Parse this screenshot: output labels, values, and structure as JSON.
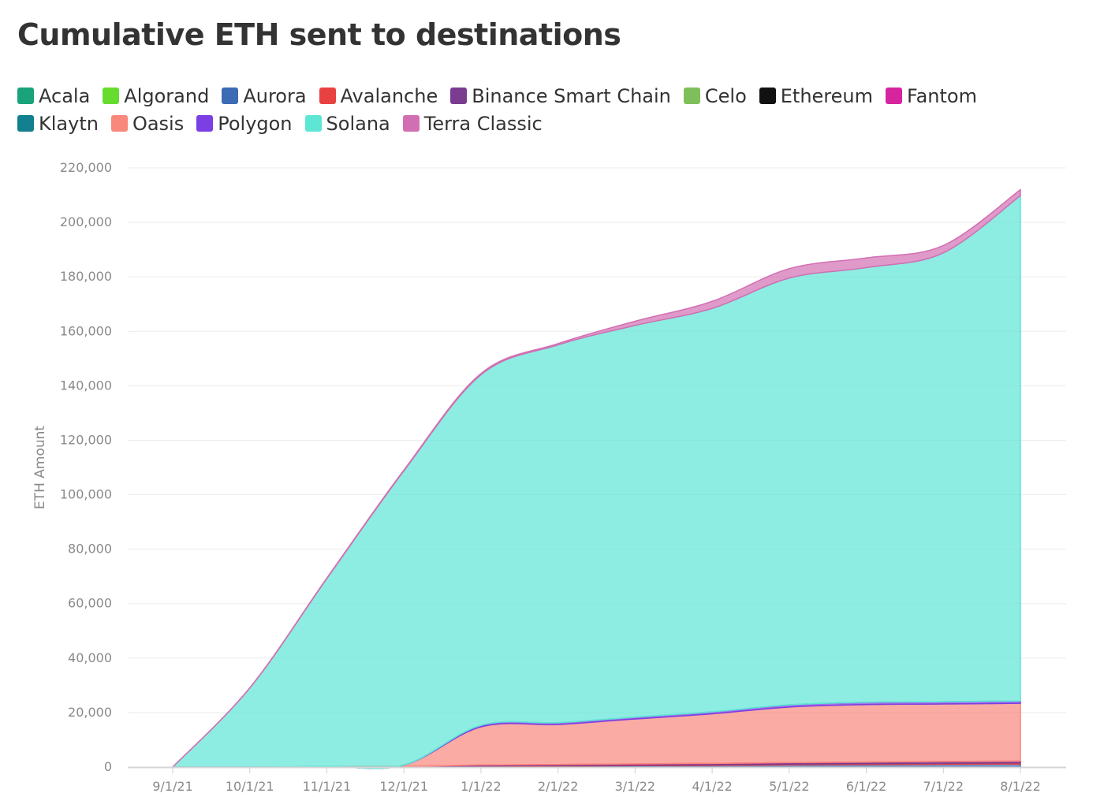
{
  "title": "Cumulative ETH sent to destinations",
  "chart_data": {
    "type": "area",
    "stacked": true,
    "title": "Cumulative ETH sent to destinations",
    "xlabel": "",
    "ylabel": "ETH Amount",
    "ylim": [
      0,
      220000
    ],
    "grid": true,
    "legend_position": "top",
    "x": [
      "9/1/21",
      "10/1/21",
      "11/1/21",
      "12/1/21",
      "1/1/22",
      "2/1/22",
      "3/1/22",
      "4/1/22",
      "5/1/22",
      "6/1/22",
      "7/1/22",
      "8/1/22"
    ],
    "y_ticks": [
      "0",
      "20,000",
      "40,000",
      "60,000",
      "80,000",
      "100,000",
      "120,000",
      "140,000",
      "160,000",
      "180,000",
      "200,000",
      "220,000"
    ],
    "series": [
      {
        "name": "Acala",
        "color": "#1aa37a",
        "values": [
          0,
          0,
          0,
          0,
          0,
          0,
          0,
          0,
          0,
          0,
          0,
          0
        ]
      },
      {
        "name": "Algorand",
        "color": "#66dd2e",
        "values": [
          0,
          0,
          0,
          0,
          0,
          0,
          0,
          0,
          0,
          0,
          0,
          0
        ]
      },
      {
        "name": "Aurora",
        "color": "#3b6bb3",
        "values": [
          0,
          0,
          0,
          0,
          300,
          400,
          500,
          600,
          800,
          900,
          1000,
          1100
        ]
      },
      {
        "name": "Avalanche",
        "color": "#e84142",
        "values": [
          0,
          0,
          0,
          0,
          100,
          150,
          200,
          250,
          300,
          350,
          400,
          450
        ]
      },
      {
        "name": "Binance Smart Chain",
        "color": "#7a3c8f",
        "values": [
          0,
          0,
          100,
          200,
          300,
          350,
          400,
          450,
          500,
          550,
          600,
          600
        ]
      },
      {
        "name": "Celo",
        "color": "#7fbf5a",
        "values": [
          0,
          0,
          0,
          0,
          0,
          0,
          0,
          0,
          0,
          0,
          0,
          0
        ]
      },
      {
        "name": "Ethereum",
        "color": "#111111",
        "values": [
          0,
          0,
          0,
          0,
          0,
          0,
          0,
          0,
          0,
          0,
          0,
          0
        ]
      },
      {
        "name": "Fantom",
        "color": "#d6249f",
        "values": [
          0,
          0,
          0,
          0,
          50,
          50,
          50,
          50,
          50,
          50,
          50,
          50
        ]
      },
      {
        "name": "Klaytn",
        "color": "#12808e",
        "values": [
          0,
          0,
          0,
          0,
          0,
          0,
          0,
          0,
          0,
          0,
          0,
          0
        ]
      },
      {
        "name": "Oasis",
        "color": "#f8877c",
        "values": [
          0,
          0,
          100,
          500,
          14000,
          14700,
          16500,
          18200,
          20400,
          21100,
          21100,
          21200
        ]
      },
      {
        "name": "Polygon",
        "color": "#7b3fe4",
        "values": [
          0,
          0,
          0,
          50,
          600,
          650,
          700,
          750,
          800,
          850,
          850,
          850
        ]
      },
      {
        "name": "Solana",
        "color": "#5ee6d5",
        "values": [
          0,
          29000,
          69000,
          108000,
          128700,
          138700,
          143800,
          148100,
          156700,
          159600,
          164800,
          185550
        ]
      },
      {
        "name": "Terra Classic",
        "color": "#d26fb3",
        "values": [
          0,
          100,
          200,
          300,
          450,
          500,
          1550,
          2600,
          3450,
          3550,
          2700,
          2200
        ]
      }
    ]
  }
}
